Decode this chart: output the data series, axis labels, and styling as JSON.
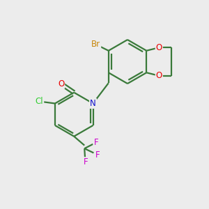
{
  "background_color": "#ececec",
  "bond_color": "#3a7a3a",
  "bond_width": 1.6,
  "atom_colors": {
    "Br": "#c8860a",
    "O": "#e80000",
    "N": "#1010cc",
    "Cl": "#32cd32",
    "F": "#cc00cc"
  },
  "figsize": [
    3.0,
    3.0
  ],
  "dpi": 100
}
